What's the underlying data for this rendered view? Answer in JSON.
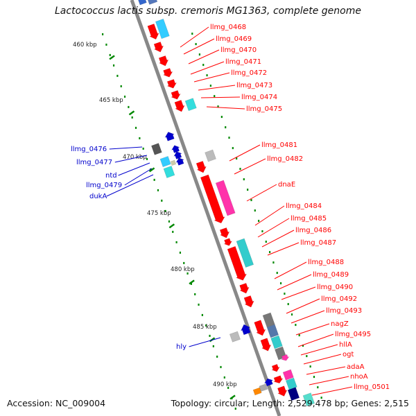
{
  "title": "Lactococcus lactis subsp. cremoris MG1363, complete genome",
  "footer": {
    "accession": "Accession: NC_009004",
    "summary": "Topology: circular; Length: 2,529,478 bp; Genes: 2,515"
  },
  "colors": {
    "forward": "#ff0000",
    "reverse": "#0000cc",
    "axis": "#888888",
    "ticks": "#008800",
    "cyan": "#33dddd",
    "magenta": "#ff33aa",
    "gray": "#666666"
  },
  "scale_labels": [
    "460 kbp",
    "465 kbp",
    "470 kbp",
    "475 kbp",
    "480 kbp",
    "485 kbp",
    "490 kbp"
  ],
  "forward_labels": [
    "llmg_0468",
    "llmg_0469",
    "llmg_0470",
    "llmg_0471",
    "llmg_0472",
    "llmg_0473",
    "llmg_0474",
    "llmg_0475",
    "llmg_0481",
    "llmg_0482",
    "dnaE",
    "llmg_0484",
    "llmg_0485",
    "llmg_0486",
    "llmg_0487",
    "llmg_0488",
    "llmg_0489",
    "llmg_0490",
    "llmg_0492",
    "llmg_0493",
    "nagZ",
    "llmg_0495",
    "hllA",
    "ogt",
    "adaA",
    "nhoA",
    "llmg_0501"
  ],
  "reverse_labels": [
    "llmg_0476",
    "llmg_0477",
    "ntd",
    "llmg_0479",
    "dukA",
    "hly"
  ]
}
